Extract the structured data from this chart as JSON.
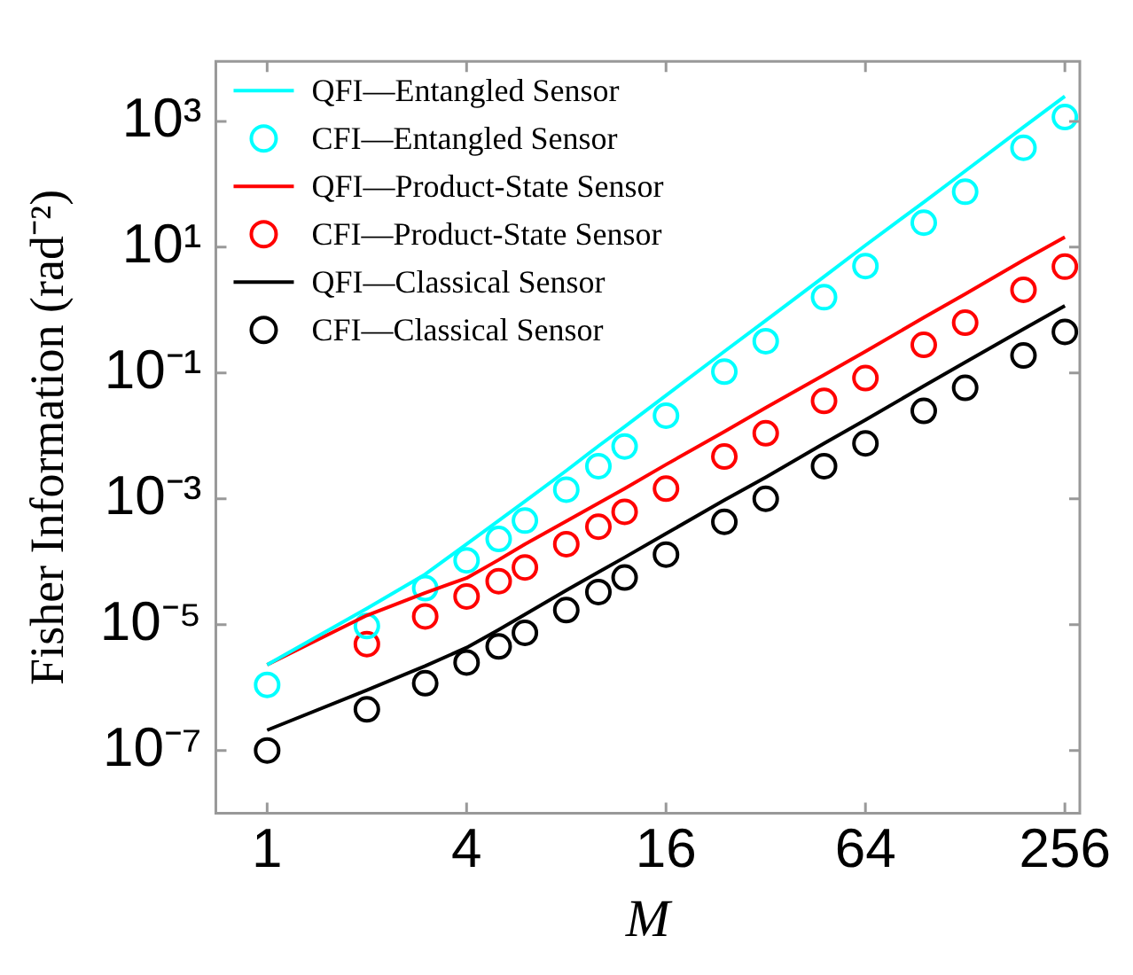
{
  "chart_data": {
    "type": "line",
    "xlabel": "M",
    "ylabel": "Fisher Information (rad⁻²)",
    "log": "xy",
    "grid": false,
    "legend": "top left",
    "x": [
      1,
      2,
      3,
      4,
      5,
      6,
      8,
      10,
      12,
      16,
      24,
      32,
      48,
      64,
      96,
      128,
      192,
      256
    ],
    "xlim": [
      0.7,
      284
    ],
    "xticks": [
      1,
      4,
      16,
      64,
      256
    ],
    "ylim": [
      1e-08,
      9000
    ],
    "yticks": [
      {
        "value": 1000,
        "label": "10³"
      },
      {
        "value": 10,
        "label": "10¹"
      },
      {
        "value": 0.1,
        "label": "10⁻¹"
      },
      {
        "value": 0.001,
        "label": "10⁻³"
      },
      {
        "value": 1e-05,
        "label": "10⁻⁵"
      },
      {
        "value": 1e-07,
        "label": "10⁻⁷"
      }
    ],
    "series": [
      {
        "name": "QFI—Entangled Sensor",
        "type": "line",
        "marker": "none",
        "line_style": "solid",
        "color": "#00ffff",
        "values": [
          2.3e-06,
          1.8e-05,
          6.3e-05,
          0.00019,
          0.00045,
          0.00091,
          0.0028,
          0.0069,
          0.014,
          0.044,
          0.22,
          0.68,
          3.4,
          10.7,
          52,
          162,
          813,
          2500
        ]
      },
      {
        "name": "CFI—Entangled Sensor",
        "type": "scatter",
        "marker": "circle",
        "color": "#00ffff",
        "values": [
          1.1e-06,
          9.5e-06,
          3.8e-05,
          0.000105,
          0.00023,
          0.00045,
          0.0014,
          0.0033,
          0.0068,
          0.021,
          0.105,
          0.32,
          1.6,
          5.0,
          24.5,
          76,
          380,
          1170
        ]
      },
      {
        "name": "QFI—Product-State Sensor",
        "type": "line",
        "marker": "none",
        "line_style": "solid",
        "color": "#ff0000",
        "values": [
          2.3e-06,
          1.4e-05,
          3.2e-05,
          5.5e-05,
          0.000107,
          0.00019,
          0.00044,
          0.00085,
          0.00145,
          0.0035,
          0.0117,
          0.028,
          0.093,
          0.22,
          0.76,
          1.8,
          6.2,
          14.5
        ]
      },
      {
        "name": "CFI—Product-State Sensor",
        "type": "scatter",
        "marker": "circle",
        "color": "#ff0000",
        "values": [
          null,
          4.9e-06,
          1.35e-05,
          2.8e-05,
          4.9e-05,
          8.1e-05,
          0.00019,
          0.00036,
          0.00062,
          0.00145,
          0.0047,
          0.011,
          0.036,
          0.083,
          0.28,
          0.63,
          2.1,
          4.9
        ]
      },
      {
        "name": "QFI—Classical Sensor",
        "type": "line",
        "marker": "none",
        "line_style": "solid",
        "color": "#000000",
        "values": [
          2.1e-07,
          9.1e-07,
          2.2e-06,
          4.3e-06,
          8.3e-06,
          1.45e-05,
          3.5e-05,
          6.8e-05,
          0.000117,
          0.00028,
          0.00095,
          0.0022,
          0.0076,
          0.018,
          0.062,
          0.148,
          0.5,
          1.17
        ]
      },
      {
        "name": "CFI—Classical Sensor",
        "type": "scatter",
        "marker": "circle",
        "color": "#000000",
        "values": [
          1e-07,
          4.5e-07,
          1.17e-06,
          2.5e-06,
          4.5e-06,
          7.4e-06,
          1.7e-05,
          3.3e-05,
          5.6e-05,
          0.00013,
          0.00043,
          0.001,
          0.0033,
          0.0076,
          0.025,
          0.058,
          0.19,
          0.45
        ]
      }
    ]
  }
}
